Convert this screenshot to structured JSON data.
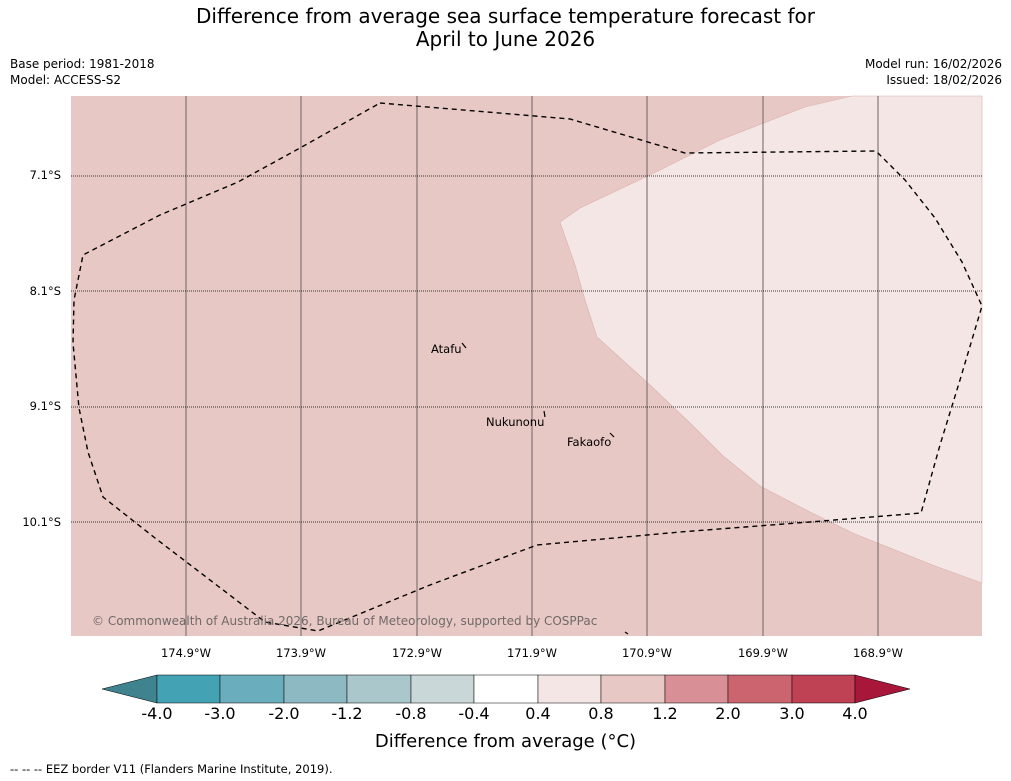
{
  "title": {
    "line1": "Difference from average sea surface temperature forecast for",
    "line2": "April to June 2026"
  },
  "meta": {
    "base_period": "Base period: 1981-2018",
    "model": "Model: ACCESS-S2",
    "model_run": "Model run: 16/02/2026",
    "issued": "Issued: 18/02/2026"
  },
  "map": {
    "latitudes": [
      "7.1°S",
      "8.1°S",
      "9.1°S",
      "10.1°S"
    ],
    "longitudes": [
      "174.9°W",
      "173.9°W",
      "172.9°W",
      "171.9°W",
      "170.9°W",
      "169.9°W",
      "168.9°W"
    ],
    "places": {
      "atafu": "Atafu",
      "nukunonu": "Nukunonu",
      "fakaofo": "Fakaofo"
    },
    "copyright": "© Commonwealth of Australia 2026, Bureau of Meteorology, supported by COSPPac",
    "colors": {
      "warm_moderate": "#e8c8c4",
      "warm_light": "#f4e6e4"
    }
  },
  "colorbar": {
    "labels": [
      "-4.0",
      "-3.0",
      "-2.0",
      "-1.2",
      "-0.8",
      "-0.4",
      "0.4",
      "0.8",
      "1.2",
      "2.0",
      "3.0",
      "4.0"
    ],
    "colors": [
      "#3f838f",
      "#43a2b3",
      "#6aaebd",
      "#8db9c3",
      "#aac7cc",
      "#c9d7d9",
      "#ffffff",
      "#f4e6e4",
      "#e8c8c4",
      "#d88f95",
      "#cc6470",
      "#be4154",
      "#a8163a"
    ],
    "title": "Difference from average (°C)"
  },
  "footer": {
    "legend": "-- -- -- EEZ border V11 (Flanders Marine Institute, 2019)."
  }
}
